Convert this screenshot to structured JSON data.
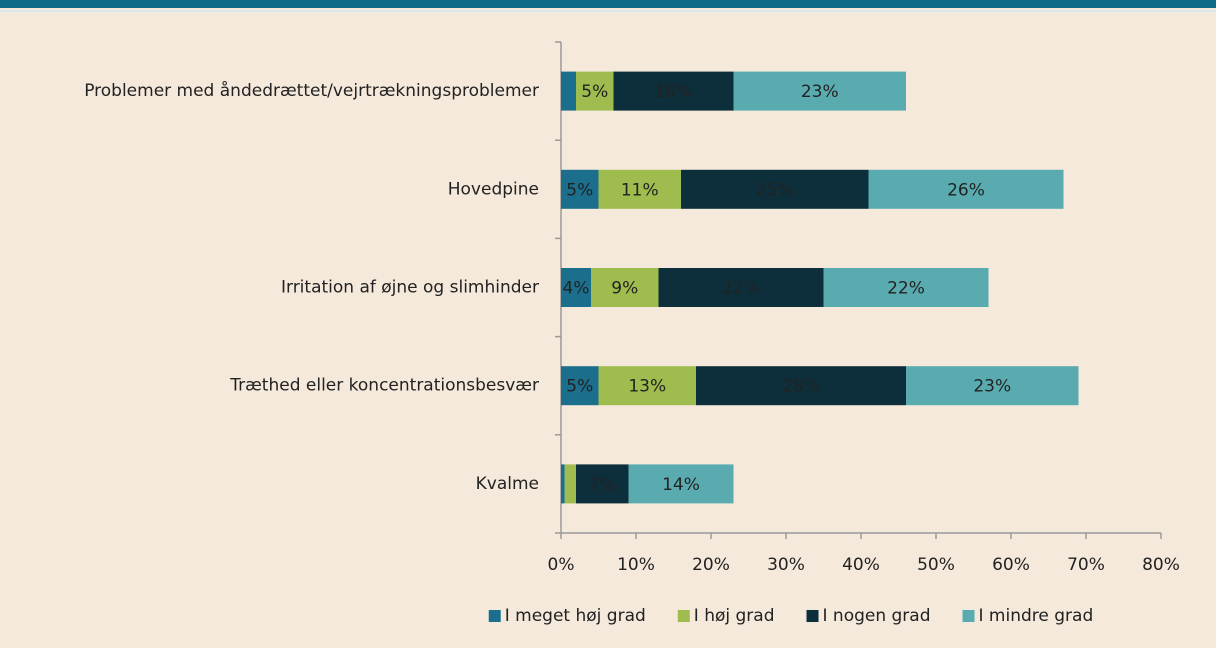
{
  "chart_data": {
    "type": "stacked-barh",
    "categories": [
      "Problemer med åndedrættet/vejrtrækningsproblemer",
      "Hovedpine",
      "Irritation af øjne og slimhinder",
      "Træthed eller koncentrationsbesvær",
      "Kvalme"
    ],
    "series": [
      {
        "name": "I meget høj grad",
        "color": "#1b6f8c",
        "values": [
          2,
          5,
          4,
          5,
          0.5
        ],
        "value_labels": [
          null,
          "5%",
          "4%",
          "5%",
          null
        ]
      },
      {
        "name": "I høj grad",
        "color": "#9fbd4f",
        "values": [
          5,
          11,
          9,
          13,
          1.5
        ],
        "value_labels": [
          "5%",
          "11%",
          "9%",
          "13%",
          null
        ]
      },
      {
        "name": "I nogen grad",
        "color": "#0c2f3b",
        "values": [
          16,
          25,
          22,
          28,
          7
        ],
        "value_labels": [
          "16%",
          "25%",
          "22%",
          "28%",
          "7%"
        ]
      },
      {
        "name": "I mindre grad",
        "color": "#5aabb0",
        "values": [
          23,
          26,
          22,
          23,
          14
        ],
        "value_labels": [
          "23%",
          "26%",
          "22%",
          "23%",
          "14%"
        ]
      }
    ],
    "xlim": [
      0,
      80
    ],
    "xticks": [
      {
        "value": 0,
        "label": "0%"
      },
      {
        "value": 10,
        "label": "10%"
      },
      {
        "value": 20,
        "label": "20%"
      },
      {
        "value": 30,
        "label": "30%"
      },
      {
        "value": 40,
        "label": "40%"
      },
      {
        "value": 50,
        "label": "50%"
      },
      {
        "value": 60,
        "label": "60%"
      },
      {
        "value": 70,
        "label": "70%"
      },
      {
        "value": 80,
        "label": "80%"
      }
    ],
    "legend": "bottom"
  }
}
